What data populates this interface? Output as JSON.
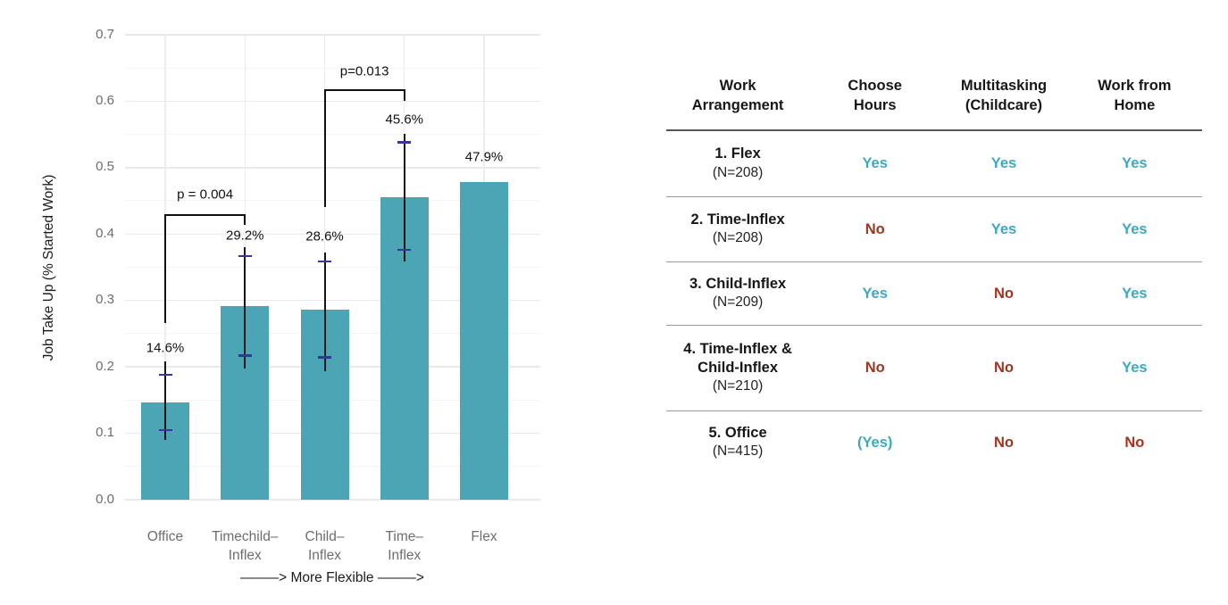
{
  "chart_data": {
    "type": "bar",
    "title": "",
    "ylabel": "Job Take Up (% Started Work)",
    "xlabel": "–––––> More Flexible –––––>",
    "ylim": [
      0,
      0.7
    ],
    "ytick_labels": [
      "0.0",
      "0.1",
      "0.2",
      "0.3",
      "0.4",
      "0.5",
      "0.6",
      "0.7"
    ],
    "grid": "horizontal major 0.1 + minor 0.05, vertical at categories, no axis lines",
    "legend": "none",
    "bar_color": "#4BA5B5",
    "error_line_color": "#151515",
    "error_tick_color": "#35359B",
    "categories": [
      "Office",
      "Timechild–Inflex",
      "Child–Inflex",
      "Time–Inflex",
      "Flex"
    ],
    "category_tick_lines": [
      "Office",
      "Timechild–\nInflex",
      "Child–\nInflex",
      "Time–\nInflex",
      "Flex"
    ],
    "values": [
      0.146,
      0.292,
      0.286,
      0.456,
      0.479
    ],
    "bar_labels": [
      "14.6%",
      "29.2%",
      "28.6%",
      "45.6%",
      "47.9%"
    ],
    "bar_label_y": [
      0.229,
      0.398,
      0.396,
      0.573,
      0.516
    ],
    "error_outer": [
      [
        0.09,
        0.208
      ],
      [
        0.197,
        0.38
      ],
      [
        0.193,
        0.372
      ],
      [
        0.359,
        0.551
      ],
      null
    ],
    "error_inner": [
      [
        0.105,
        0.188
      ],
      [
        0.217,
        0.367
      ],
      [
        0.214,
        0.359
      ],
      [
        0.376,
        0.538
      ],
      null
    ],
    "brackets": [
      {
        "label": "p = 0.004",
        "from": 0,
        "to": 1,
        "y": 0.43,
        "drop_left": 0.266,
        "drop_right": 0.414,
        "label_y": 0.46
      },
      {
        "label": "p=0.013",
        "from": 2,
        "to": 3,
        "y": 0.618,
        "drop_left": 0.441,
        "drop_right": 0.601,
        "label_y": 0.645
      }
    ]
  },
  "table": {
    "columns": [
      "Work\nArrangement",
      "Choose\nHours",
      "Multitasking\n(Childcare)",
      "Work from\nHome"
    ],
    "rows": [
      {
        "name": "1. Flex",
        "n": "(N=208)",
        "cells": [
          "Yes",
          "Yes",
          "Yes"
        ]
      },
      {
        "name": "2. Time-Inflex",
        "n": "(N=208)",
        "cells": [
          "No",
          "Yes",
          "Yes"
        ]
      },
      {
        "name": "3. Child-Inflex",
        "n": "(N=209)",
        "cells": [
          "Yes",
          "No",
          "Yes"
        ]
      },
      {
        "name": "4. Time-Inflex &\nChild-Inflex",
        "n": "(N=210)",
        "cells": [
          "No",
          "No",
          "Yes"
        ]
      },
      {
        "name": "5. Office",
        "n": "(N=415)",
        "cells": [
          "(Yes)",
          "No",
          "No"
        ]
      }
    ],
    "yes_color": "#3CA9BF",
    "no_color": "#A4331E"
  }
}
